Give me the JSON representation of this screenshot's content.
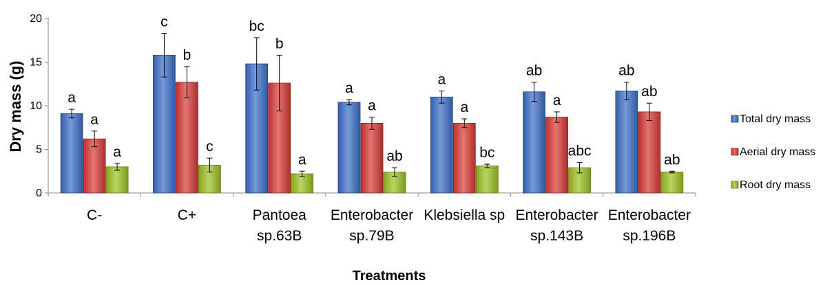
{
  "chart_data": {
    "type": "bar",
    "title": "",
    "xlabel": "Treatments",
    "ylabel": "Dry mass (g)",
    "ylim": [
      0,
      20
    ],
    "yticks": [
      0,
      5,
      10,
      15,
      20
    ],
    "grid": false,
    "legend_position": "right",
    "categories": [
      [
        "C-"
      ],
      [
        "C+"
      ],
      [
        "Pantoea",
        "sp.63B"
      ],
      [
        "Enterobacter",
        "sp.79B"
      ],
      [
        "Klebsiella sp"
      ],
      [
        "Enterobacter",
        "sp.143B"
      ],
      [
        "Enterobacter",
        "sp.196B"
      ]
    ],
    "series": [
      {
        "name": "Total dry mass",
        "color": "#3b6fc9",
        "values": [
          9.1,
          15.8,
          14.8,
          10.4,
          11.0,
          11.6,
          11.7
        ],
        "errors": [
          0.5,
          2.5,
          3.0,
          0.3,
          0.7,
          1.1,
          1.0
        ],
        "labels": [
          "a",
          "c",
          "bc",
          "a",
          "a",
          "ab",
          "ab"
        ]
      },
      {
        "name": "Aerial dry mass",
        "color": "#d93a36",
        "values": [
          6.2,
          12.7,
          12.6,
          8.0,
          8.0,
          8.7,
          9.3
        ],
        "errors": [
          0.9,
          1.8,
          3.2,
          0.7,
          0.5,
          0.6,
          1.0
        ],
        "labels": [
          "a",
          "b",
          "b",
          "a",
          "a",
          "a",
          "ab"
        ]
      },
      {
        "name": "Root dry mass",
        "color": "#9bc31f",
        "values": [
          3.0,
          3.2,
          2.2,
          2.4,
          3.1,
          2.9,
          2.4
        ],
        "errors": [
          0.4,
          0.8,
          0.3,
          0.5,
          0.2,
          0.6,
          0.1
        ],
        "labels": [
          "a",
          "c",
          "a",
          "ab",
          "bc",
          "abc",
          "ab"
        ]
      }
    ]
  }
}
